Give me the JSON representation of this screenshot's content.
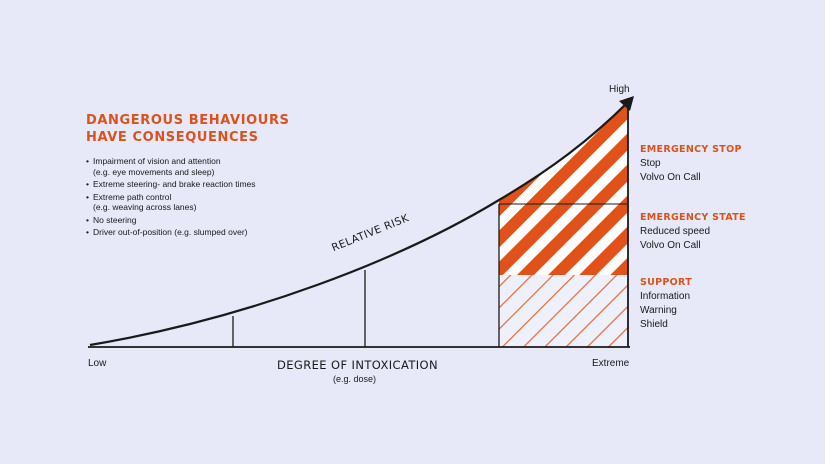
{
  "headline": {
    "line1": "DANGEROUS BEHAVIOURS",
    "line2": "HAVE CONSEQUENCES"
  },
  "bullets": [
    {
      "text": "Impairment of vision and attention",
      "sub": "(e.g. eye movements and sleep)"
    },
    {
      "text": "Extreme steering- and brake reaction times",
      "sub": ""
    },
    {
      "text": "Extreme path control",
      "sub": "(e.g. weaving across lanes)"
    },
    {
      "text": "No steering",
      "sub": ""
    },
    {
      "text": "Driver out-of-position (e.g. slumped over)",
      "sub": ""
    }
  ],
  "axes": {
    "x_title": "DEGREE OF INTOXICATION",
    "x_subtitle": "(e.g. dose)",
    "x_low": "Low",
    "x_high": "Extreme",
    "y_high": "High"
  },
  "curve_label": "RELATIVE RISK",
  "zones": [
    {
      "title": "EMERGENCY STOP",
      "items": [
        "Stop",
        "Volvo On Call"
      ]
    },
    {
      "title": "EMERGENCY STATE",
      "items": [
        "Reduced speed",
        "Volvo On Call"
      ]
    },
    {
      "title": "SUPPORT",
      "items": [
        "Information",
        "Warning",
        "Shield"
      ]
    }
  ],
  "colors": {
    "accent": "#d8531d",
    "background": "#e7e8f8",
    "ink": "#1a1a1a"
  }
}
